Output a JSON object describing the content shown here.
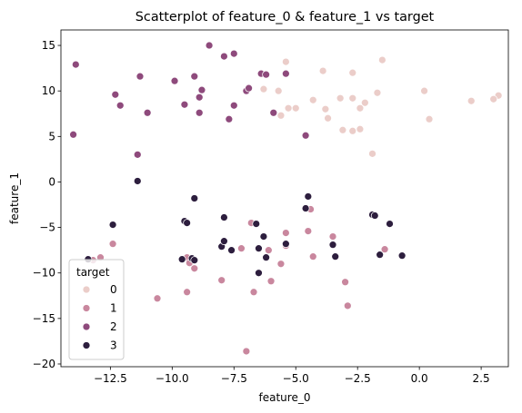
{
  "chart_data": {
    "type": "scatter",
    "title": "Scatterplot of feature_0 & feature_1 vs target",
    "xlabel": "feature_0",
    "ylabel": "feature_1",
    "xlim": [
      -14.5,
      3.6
    ],
    "ylim": [
      -20.3,
      16.7
    ],
    "xticks": [
      -12.5,
      -10.0,
      -7.5,
      -5.0,
      -2.5,
      0.0,
      2.5
    ],
    "xtick_labels": [
      "−12.5",
      "−10.0",
      "−7.5",
      "−5.0",
      "−2.5",
      "0.0",
      "2.5"
    ],
    "yticks": [
      -20,
      -15,
      -10,
      -5,
      0,
      5,
      10,
      15
    ],
    "ytick_labels": [
      "−20",
      "−15",
      "−10",
      "−5",
      "0",
      "5",
      "10",
      "15"
    ],
    "grid": false,
    "legend": {
      "title": "target",
      "placement": "lower-left"
    },
    "series": [
      {
        "name": "0",
        "color": "#ebcdc9",
        "points": [
          [
            -5.4,
            13.2
          ],
          [
            -3.9,
            12.2
          ],
          [
            -1.5,
            13.4
          ],
          [
            -2.7,
            12.0
          ],
          [
            -6.3,
            10.2
          ],
          [
            -5.7,
            10.0
          ],
          [
            -5.3,
            8.1
          ],
          [
            -5.0,
            8.1
          ],
          [
            -4.3,
            9.0
          ],
          [
            -3.8,
            8.0
          ],
          [
            -3.2,
            9.2
          ],
          [
            -2.7,
            9.2
          ],
          [
            -2.2,
            8.7
          ],
          [
            -2.4,
            8.1
          ],
          [
            -1.7,
            9.8
          ],
          [
            0.2,
            10.0
          ],
          [
            2.1,
            8.9
          ],
          [
            3.2,
            9.5
          ],
          [
            3.0,
            9.1
          ],
          [
            0.4,
            6.9
          ],
          [
            -5.6,
            7.3
          ],
          [
            -3.7,
            7.0
          ],
          [
            -3.1,
            5.7
          ],
          [
            -2.7,
            5.6
          ],
          [
            -2.4,
            5.8
          ],
          [
            -1.9,
            3.1
          ]
        ]
      },
      {
        "name": "1",
        "color": "#c9879e",
        "points": [
          [
            -12.4,
            -6.8
          ],
          [
            -12.9,
            -8.3
          ],
          [
            -13.2,
            -8.6
          ],
          [
            -10.6,
            -12.8
          ],
          [
            -9.4,
            -8.3
          ],
          [
            -9.3,
            -8.9
          ],
          [
            -9.1,
            -9.5
          ],
          [
            -9.4,
            -12.1
          ],
          [
            -8.0,
            -10.8
          ],
          [
            -6.8,
            -4.5
          ],
          [
            -7.2,
            -7.3
          ],
          [
            -6.1,
            -7.5
          ],
          [
            -6.0,
            -10.9
          ],
          [
            -6.7,
            -12.1
          ],
          [
            -5.6,
            -9.0
          ],
          [
            -5.4,
            -7.0
          ],
          [
            -5.4,
            -5.6
          ],
          [
            -4.5,
            -5.4
          ],
          [
            -4.4,
            -3.0
          ],
          [
            -4.3,
            -8.2
          ],
          [
            -3.5,
            -6.0
          ],
          [
            -3.0,
            -11.0
          ],
          [
            -2.9,
            -13.6
          ],
          [
            -1.4,
            -7.4
          ],
          [
            -7.0,
            -18.6
          ]
        ]
      },
      {
        "name": "2",
        "color": "#8e4a7c",
        "points": [
          [
            -13.9,
            12.9
          ],
          [
            -14.0,
            5.2
          ],
          [
            -12.3,
            9.6
          ],
          [
            -12.1,
            8.4
          ],
          [
            -11.3,
            11.6
          ],
          [
            -11.0,
            7.6
          ],
          [
            -11.4,
            3.0
          ],
          [
            -9.9,
            11.1
          ],
          [
            -9.5,
            8.5
          ],
          [
            -9.1,
            11.6
          ],
          [
            -8.9,
            9.3
          ],
          [
            -8.8,
            10.1
          ],
          [
            -8.9,
            7.6
          ],
          [
            -8.5,
            15.0
          ],
          [
            -7.9,
            13.8
          ],
          [
            -7.5,
            14.1
          ],
          [
            -7.5,
            8.4
          ],
          [
            -7.7,
            6.9
          ],
          [
            -7.0,
            10.0
          ],
          [
            -6.9,
            10.3
          ],
          [
            -6.4,
            11.9
          ],
          [
            -6.2,
            11.8
          ],
          [
            -5.9,
            7.6
          ],
          [
            -5.4,
            11.9
          ],
          [
            -4.6,
            5.1
          ]
        ]
      },
      {
        "name": "3",
        "color": "#2d1e3e",
        "points": [
          [
            -11.4,
            0.1
          ],
          [
            -12.4,
            -4.7
          ],
          [
            -13.4,
            -8.5
          ],
          [
            -9.5,
            -4.3
          ],
          [
            -9.4,
            -4.5
          ],
          [
            -9.6,
            -8.5
          ],
          [
            -9.2,
            -8.4
          ],
          [
            -9.1,
            -8.6
          ],
          [
            -9.1,
            -1.8
          ],
          [
            -7.9,
            -3.9
          ],
          [
            -8.0,
            -7.1
          ],
          [
            -7.9,
            -6.5
          ],
          [
            -7.6,
            -7.5
          ],
          [
            -6.6,
            -4.6
          ],
          [
            -6.5,
            -7.3
          ],
          [
            -6.3,
            -6.0
          ],
          [
            -6.5,
            -10.0
          ],
          [
            -6.2,
            -8.3
          ],
          [
            -5.4,
            -6.8
          ],
          [
            -4.6,
            -2.9
          ],
          [
            -4.5,
            -1.6
          ],
          [
            -3.5,
            -6.9
          ],
          [
            -3.4,
            -8.2
          ],
          [
            -1.9,
            -3.6
          ],
          [
            -1.8,
            -3.7
          ],
          [
            -1.6,
            -8.0
          ],
          [
            -1.2,
            -4.6
          ],
          [
            -0.7,
            -8.1
          ]
        ]
      }
    ]
  }
}
